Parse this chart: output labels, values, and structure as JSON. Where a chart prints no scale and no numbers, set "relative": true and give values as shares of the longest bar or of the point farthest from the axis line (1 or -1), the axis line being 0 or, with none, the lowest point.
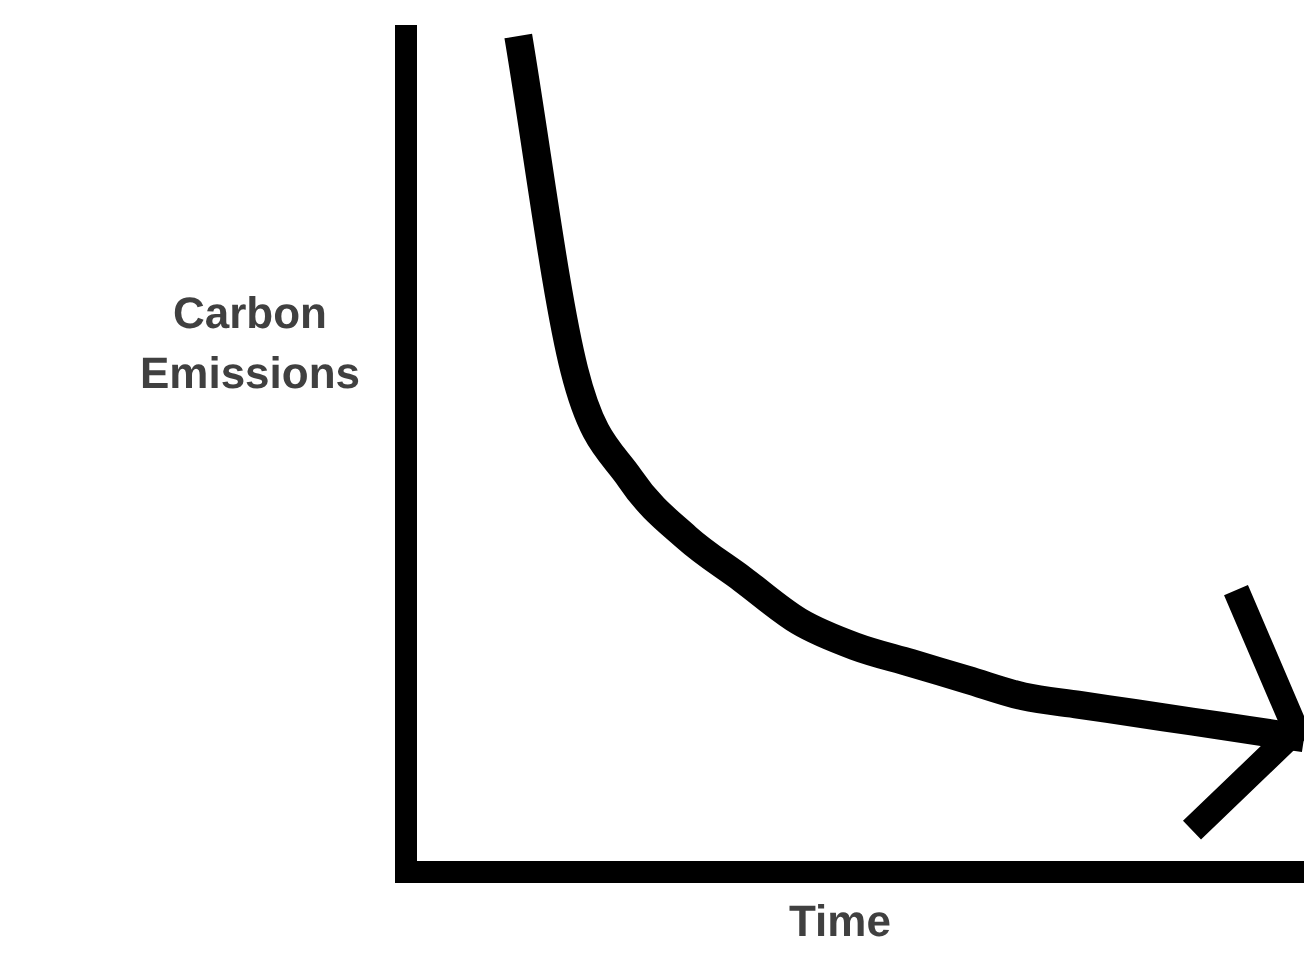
{
  "chart_data": {
    "type": "line",
    "xlabel": "Time",
    "ylabel": "Carbon Emissions",
    "relative": true,
    "grid": false,
    "legend": false,
    "marker": "none",
    "line_style": "solid",
    "categories": [
      null,
      null,
      null,
      null,
      null,
      null,
      null,
      null,
      null,
      null,
      null,
      null,
      null,
      null,
      null,
      null,
      null
    ],
    "series": [
      {
        "color": "#000000",
        "values": [
          null,
          null,
          1,
          0.6,
          0.47,
          0.4,
          0.35,
          0.3,
          0.27,
          0.25,
          0.23,
          0.21,
          0.2,
          0.19,
          0.18,
          0.17,
          0.16
        ]
      }
    ]
  }
}
